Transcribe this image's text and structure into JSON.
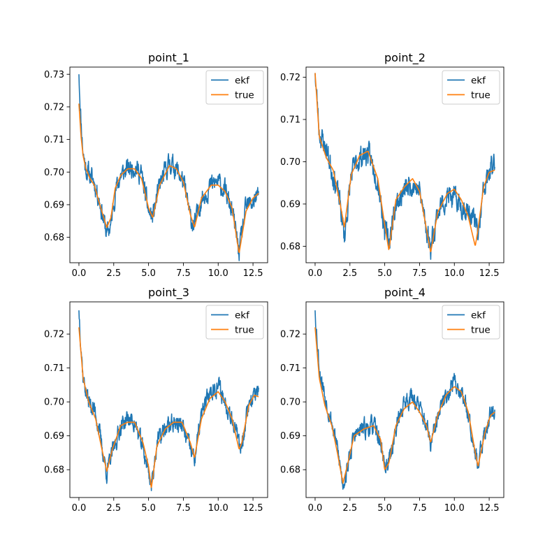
{
  "chart_data": [
    {
      "type": "line",
      "title": "point_1",
      "xlim": [
        -0.65,
        13.55
      ],
      "ylim": [
        0.6722,
        0.7322
      ],
      "xticks": [
        0,
        2.5,
        5,
        7.5,
        10,
        12.5
      ],
      "xtick_labels": [
        "0.0",
        "2.5",
        "5.0",
        "7.5",
        "10.0",
        "12.5"
      ],
      "yticks": [
        0.68,
        0.69,
        0.7,
        0.71,
        0.72,
        0.73
      ],
      "ytick_labels": [
        "0.68",
        "0.69",
        "0.70",
        "0.71",
        "0.72",
        "0.73"
      ],
      "legend_position": "top-right",
      "series": [
        {
          "name": "ekf",
          "color": "#1f77b4",
          "noise": 0.0025,
          "seed": 11,
          "start": 0.73,
          "x": [
            0,
            0.15,
            0.3,
            0.5,
            0.8,
            1.1,
            1.5,
            2.0,
            2.3,
            2.6,
            3.0,
            3.5,
            4.0,
            4.5,
            5.0,
            5.3,
            5.8,
            6.5,
            7.0,
            7.5,
            8.0,
            8.3,
            8.8,
            9.5,
            10.0,
            10.5,
            11.0,
            11.5,
            12.0,
            12.5,
            12.9
          ],
          "y": [
            0.73,
            0.7155,
            0.706,
            0.701,
            0.699,
            0.697,
            0.691,
            0.681,
            0.684,
            0.694,
            0.699,
            0.701,
            0.702,
            0.699,
            0.688,
            0.686,
            0.696,
            0.703,
            0.701,
            0.697,
            0.686,
            0.6835,
            0.692,
            0.696,
            0.697,
            0.694,
            0.688,
            0.6755,
            0.689,
            0.691,
            0.693
          ]
        },
        {
          "name": "true",
          "color": "#ff7f0e",
          "noise": 0,
          "seed": 0,
          "x": [
            0,
            0.15,
            0.3,
            0.5,
            0.8,
            1.1,
            1.5,
            2.0,
            2.3,
            2.6,
            3.0,
            3.5,
            4.0,
            4.5,
            5.0,
            5.3,
            5.8,
            6.5,
            7.0,
            7.5,
            8.0,
            8.3,
            8.8,
            9.5,
            10.0,
            10.5,
            11.0,
            11.5,
            12.0,
            12.5,
            12.9
          ],
          "y": [
            0.721,
            0.711,
            0.705,
            0.701,
            0.698,
            0.696,
            0.69,
            0.683,
            0.686,
            0.695,
            0.699,
            0.701,
            0.701,
            0.698,
            0.689,
            0.686,
            0.696,
            0.702,
            0.701,
            0.697,
            0.687,
            0.683,
            0.692,
            0.696,
            0.696,
            0.694,
            0.689,
            0.675,
            0.688,
            0.692,
            0.6935
          ]
        }
      ]
    },
    {
      "type": "line",
      "title": "point_2",
      "xlim": [
        -0.65,
        13.55
      ],
      "ylim": [
        0.6761,
        0.7224
      ],
      "xticks": [
        0,
        2.5,
        5,
        7.5,
        10,
        12.5
      ],
      "xtick_labels": [
        "0.0",
        "2.5",
        "5.0",
        "7.5",
        "10.0",
        "12.5"
      ],
      "yticks": [
        0.68,
        0.69,
        0.7,
        0.71,
        0.72
      ],
      "ytick_labels": [
        "0.68",
        "0.69",
        "0.70",
        "0.71",
        "0.72"
      ],
      "legend_position": "top-right",
      "series": [
        {
          "name": "ekf",
          "color": "#1f77b4",
          "noise": 0.0022,
          "seed": 23,
          "start": 0.721,
          "x": [
            0,
            0.3,
            0.8,
            1.3,
            1.8,
            2.1,
            2.6,
            3.2,
            3.8,
            4.5,
            5.0,
            5.3,
            5.8,
            6.4,
            7.0,
            7.5,
            8.0,
            8.3,
            8.8,
            9.5,
            10.0,
            10.5,
            11.0,
            11.5,
            11.7,
            12.1,
            12.5,
            12.9
          ],
          "y": [
            0.721,
            0.707,
            0.703,
            0.697,
            0.69,
            0.682,
            0.697,
            0.701,
            0.702,
            0.696,
            0.684,
            0.681,
            0.69,
            0.693,
            0.695,
            0.693,
            0.684,
            0.68,
            0.688,
            0.692,
            0.691,
            0.69,
            0.688,
            0.686,
            0.682,
            0.693,
            0.697,
            0.7
          ]
        },
        {
          "name": "true",
          "color": "#ff7f0e",
          "noise": 0,
          "seed": 0,
          "x": [
            0,
            0.3,
            0.8,
            1.3,
            1.8,
            2.1,
            2.6,
            3.2,
            3.8,
            4.5,
            5.0,
            5.3,
            5.8,
            6.4,
            7.0,
            7.5,
            8.0,
            8.3,
            8.8,
            9.5,
            10.0,
            10.5,
            11.0,
            11.5,
            11.7,
            12.1,
            12.5,
            12.9
          ],
          "y": [
            0.721,
            0.706,
            0.701,
            0.698,
            0.69,
            0.6845,
            0.697,
            0.7015,
            0.7025,
            0.696,
            0.685,
            0.679,
            0.691,
            0.694,
            0.696,
            0.693,
            0.684,
            0.6785,
            0.688,
            0.6925,
            0.6935,
            0.691,
            0.687,
            0.68,
            0.684,
            0.694,
            0.6975,
            0.698
          ]
        }
      ]
    },
    {
      "type": "line",
      "title": "point_3",
      "xlim": [
        -0.65,
        13.55
      ],
      "ylim": [
        0.6718,
        0.7295
      ],
      "xticks": [
        0,
        2.5,
        5,
        7.5,
        10,
        12.5
      ],
      "xtick_labels": [
        "0.0",
        "2.5",
        "5.0",
        "7.5",
        "10.0",
        "12.5"
      ],
      "yticks": [
        0.68,
        0.69,
        0.7,
        0.71,
        0.72
      ],
      "ytick_labels": [
        "0.68",
        "0.69",
        "0.70",
        "0.71",
        "0.72"
      ],
      "legend_position": "top-right",
      "series": [
        {
          "name": "ekf",
          "color": "#1f77b4",
          "noise": 0.0022,
          "seed": 37,
          "start": 0.727,
          "x": [
            0,
            0.3,
            0.7,
            1.2,
            1.6,
            2.0,
            2.4,
            3.0,
            3.5,
            4.0,
            4.6,
            5.0,
            5.2,
            5.6,
            6.2,
            6.8,
            7.4,
            8.0,
            8.3,
            8.8,
            9.4,
            10.0,
            10.5,
            11.0,
            11.5,
            11.7,
            12.2,
            12.6,
            12.9
          ],
          "y": [
            0.727,
            0.707,
            0.7,
            0.697,
            0.688,
            0.679,
            0.685,
            0.693,
            0.695,
            0.694,
            0.686,
            0.68,
            0.675,
            0.688,
            0.692,
            0.694,
            0.693,
            0.686,
            0.683,
            0.696,
            0.703,
            0.705,
            0.7,
            0.696,
            0.687,
            0.688,
            0.7,
            0.702,
            0.703
          ]
        },
        {
          "name": "true",
          "color": "#ff7f0e",
          "noise": 0,
          "seed": 0,
          "x": [
            0,
            0.3,
            0.7,
            1.2,
            1.6,
            2.0,
            2.4,
            3.0,
            3.5,
            4.0,
            4.6,
            5.0,
            5.2,
            5.6,
            6.2,
            6.8,
            7.4,
            8.0,
            8.3,
            8.8,
            9.4,
            10.0,
            10.5,
            11.0,
            11.5,
            11.7,
            12.2,
            12.6,
            12.9
          ],
          "y": [
            0.722,
            0.707,
            0.7,
            0.695,
            0.687,
            0.6795,
            0.686,
            0.693,
            0.694,
            0.694,
            0.688,
            0.681,
            0.6745,
            0.687,
            0.692,
            0.694,
            0.694,
            0.688,
            0.6835,
            0.695,
            0.701,
            0.703,
            0.7,
            0.695,
            0.686,
            0.688,
            0.699,
            0.702,
            0.7015
          ]
        }
      ]
    },
    {
      "type": "line",
      "title": "point_4",
      "xlim": [
        -0.65,
        13.55
      ],
      "ylim": [
        0.6718,
        0.7295
      ],
      "xticks": [
        0,
        2.5,
        5,
        7.5,
        10,
        12.5
      ],
      "xtick_labels": [
        "0.0",
        "2.5",
        "5.0",
        "7.5",
        "10.0",
        "12.5"
      ],
      "yticks": [
        0.68,
        0.69,
        0.7,
        0.71,
        0.72
      ],
      "ytick_labels": [
        "0.68",
        "0.69",
        "0.70",
        "0.71",
        "0.72"
      ],
      "legend_position": "top-right",
      "series": [
        {
          "name": "ekf",
          "color": "#1f77b4",
          "noise": 0.0022,
          "seed": 53,
          "start": 0.727,
          "x": [
            0,
            0.3,
            0.7,
            1.2,
            1.6,
            2.0,
            2.3,
            2.8,
            3.5,
            4.2,
            4.7,
            5.0,
            5.3,
            5.8,
            6.4,
            7.0,
            7.5,
            8.0,
            8.3,
            8.8,
            9.4,
            10.0,
            10.5,
            11.0,
            11.5,
            11.7,
            12.2,
            12.6,
            12.9
          ],
          "y": [
            0.727,
            0.71,
            0.702,
            0.694,
            0.686,
            0.676,
            0.68,
            0.69,
            0.692,
            0.693,
            0.688,
            0.681,
            0.682,
            0.692,
            0.7,
            0.702,
            0.698,
            0.693,
            0.687,
            0.695,
            0.702,
            0.706,
            0.703,
            0.697,
            0.686,
            0.681,
            0.691,
            0.697,
            0.698
          ]
        },
        {
          "name": "true",
          "color": "#ff7f0e",
          "noise": 0,
          "seed": 0,
          "x": [
            0,
            0.3,
            0.7,
            1.2,
            1.6,
            2.0,
            2.3,
            2.8,
            3.5,
            4.2,
            4.7,
            5.0,
            5.3,
            5.8,
            6.4,
            7.0,
            7.5,
            8.0,
            8.3,
            8.8,
            9.4,
            10.0,
            10.5,
            11.0,
            11.5,
            11.7,
            12.2,
            12.6,
            12.9
          ],
          "y": [
            0.722,
            0.707,
            0.699,
            0.693,
            0.685,
            0.676,
            0.681,
            0.69,
            0.692,
            0.693,
            0.689,
            0.68,
            0.682,
            0.693,
            0.698,
            0.7,
            0.697,
            0.693,
            0.688,
            0.696,
            0.702,
            0.7045,
            0.703,
            0.697,
            0.685,
            0.681,
            0.691,
            0.696,
            0.697
          ]
        }
      ]
    }
  ]
}
